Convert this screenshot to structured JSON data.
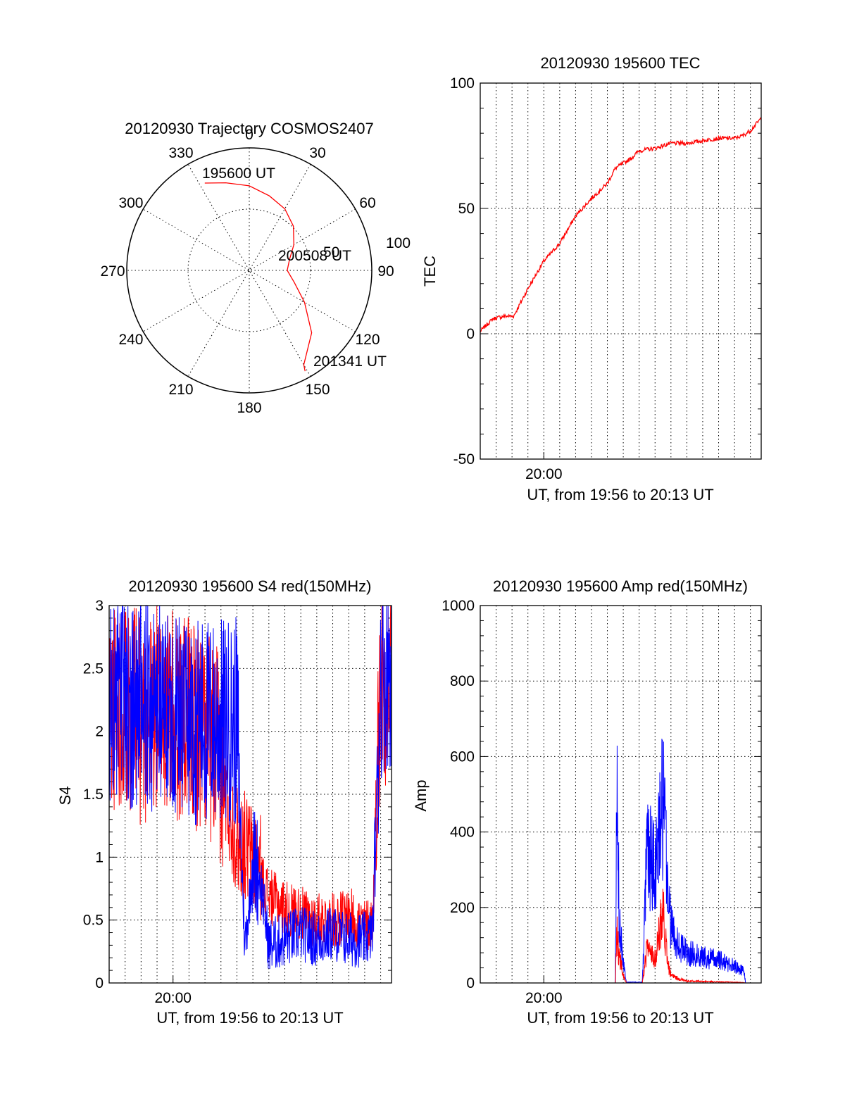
{
  "colors": {
    "red": "#ff0000",
    "blue": "#0000ff",
    "axis": "#000000",
    "background": "#ffffff"
  },
  "polar": {
    "title": "20120930 Trajectory COSMOS2407",
    "angle_labels": [
      "0",
      "30",
      "60",
      "90",
      "120",
      "150",
      "180",
      "210",
      "240",
      "270",
      "300",
      "330"
    ],
    "radius_labels": [
      "50",
      "100"
    ],
    "start_label": "195600 UT",
    "mid_label": "200508 UT",
    "end_label": "201341 UT"
  },
  "chart_data": [
    {
      "id": "trajectory",
      "type": "scatter",
      "title": "20120930 Trajectory COSMOS2407",
      "coordinate_system": "polar (azimuth in degrees, clockwise from north; radial = zenith angle, 0 at centre to 100 at edge)",
      "series": [
        {
          "color": "#ff0000",
          "azimuth": [
            333,
            345,
            360,
            15,
            30,
            45,
            60,
            75,
            90,
            105,
            120,
            135,
            150,
            151
          ],
          "zenith": [
            80,
            74,
            69,
            63,
            58,
            51,
            42,
            34,
            31,
            38,
            52,
            72,
            89,
            94
          ]
        }
      ],
      "annotations": [
        "195600 UT",
        "200508 UT",
        "201341 UT"
      ]
    },
    {
      "id": "tec",
      "type": "line",
      "title": "20120930 195600 TEC",
      "xlabel": "UT, from 19:56 to 20:13 UT",
      "ylabel": "TEC",
      "xlim": [
        0,
        17.68
      ],
      "ylim": [
        -50,
        100
      ],
      "yticks": [
        -50,
        0,
        50,
        100
      ],
      "xtick_labels": [
        {
          "minute": 4,
          "label": "20:00"
        }
      ],
      "grid": true,
      "series": [
        {
          "color": "#ff0000",
          "x": [
            0,
            0.8,
            1.5,
            2.1,
            3,
            4,
            5,
            6,
            7,
            8,
            8.5,
            9,
            9.5,
            10,
            11,
            12,
            13,
            14,
            15,
            16,
            16.5,
            17,
            17.68
          ],
          "y": [
            1,
            6,
            7,
            7,
            18,
            29,
            36,
            47,
            54,
            60,
            66,
            68,
            70,
            73,
            74,
            76,
            76,
            77,
            78,
            78,
            79,
            81,
            86
          ]
        }
      ]
    },
    {
      "id": "s4",
      "type": "line",
      "title": "20120930 195600 S4 red(150MHz)",
      "xlabel": "UT, from 19:56 to 20:13 UT",
      "ylabel": "S4",
      "xlim": [
        0,
        17.68
      ],
      "ylim": [
        0,
        3
      ],
      "yticks": [
        0,
        0.5,
        1,
        1.5,
        2,
        2.5,
        3
      ],
      "xtick_labels": [
        {
          "minute": 4,
          "label": "20:00"
        }
      ],
      "grid": true,
      "series": [
        {
          "color": "#ff0000",
          "x": [
            0,
            1,
            2,
            3,
            4,
            5,
            6,
            7,
            7.5,
            8,
            8.5,
            9,
            9.5,
            10,
            11,
            12,
            13,
            14,
            15,
            16,
            16.5,
            17,
            17.68
          ],
          "y": [
            2.0,
            2.1,
            1.9,
            2.0,
            1.95,
            1.9,
            1.85,
            1.6,
            1.3,
            1.05,
            1.0,
            0.9,
            0.8,
            0.65,
            0.55,
            0.5,
            0.45,
            0.45,
            0.5,
            0.4,
            0.45,
            2.2,
            2.3
          ]
        },
        {
          "color": "#0000ff",
          "x": [
            0,
            1,
            2,
            3,
            4,
            5,
            6,
            7,
            8,
            8.5,
            9,
            9.5,
            10,
            11,
            12,
            13,
            14,
            15,
            16,
            16.5,
            17,
            17.68
          ],
          "y": [
            2.05,
            2.1,
            2.0,
            2.05,
            2.0,
            1.95,
            1.9,
            1.9,
            1.9,
            0.25,
            0.9,
            0.75,
            0.25,
            0.3,
            0.35,
            0.3,
            0.35,
            0.3,
            0.3,
            0.35,
            2.3,
            2.4
          ]
        }
      ]
    },
    {
      "id": "amp",
      "type": "line",
      "title": "20120930 195600 Amp red(150MHz)",
      "xlabel": "UT, from 19:56 to 20:13 UT",
      "ylabel": "Amp",
      "xlim": [
        0,
        17.68
      ],
      "ylim": [
        0,
        1000
      ],
      "yticks": [
        0,
        200,
        400,
        600,
        800,
        1000
      ],
      "xtick_labels": [
        {
          "minute": 4,
          "label": "20:00"
        }
      ],
      "grid": true,
      "series": [
        {
          "color": "#0000ff",
          "x": [
            0,
            8.5,
            8.6,
            8.75,
            9.0,
            9.2,
            10.2,
            10.5,
            11.0,
            11.5,
            11.8,
            12.0,
            12.5,
            13,
            14,
            15,
            16,
            16.6,
            16.7,
            17.68
          ],
          "y": [
            0,
            0,
            500,
            180,
            60,
            2,
            2,
            350,
            300,
            480,
            260,
            150,
            100,
            80,
            70,
            60,
            45,
            30,
            0,
            0
          ]
        },
        {
          "color": "#ff0000",
          "x": [
            0,
            8.5,
            8.6,
            8.75,
            9.0,
            9.2,
            10.2,
            10.5,
            11.0,
            11.5,
            11.8,
            12.0,
            12.5,
            13,
            14,
            15,
            16,
            16.6,
            16.7,
            17.68
          ],
          "y": [
            0,
            0,
            130,
            70,
            20,
            0,
            0,
            90,
            70,
            190,
            50,
            20,
            10,
            5,
            4,
            3,
            2,
            1,
            0,
            0
          ]
        }
      ]
    }
  ]
}
